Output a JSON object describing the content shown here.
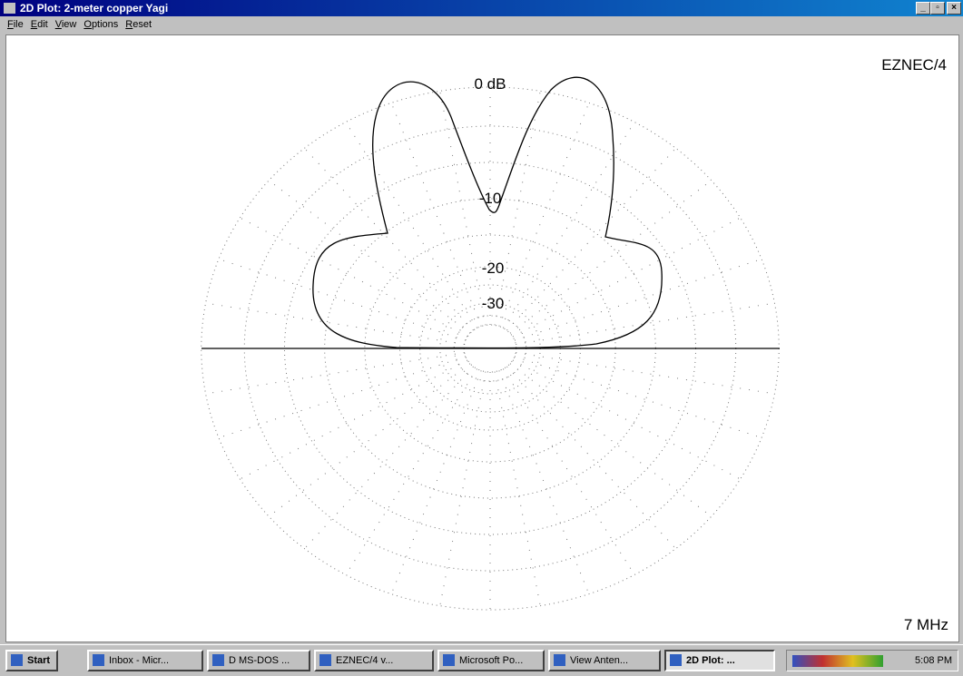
{
  "window": {
    "title": "2D Plot: 2-meter copper Yagi",
    "menu": [
      "File",
      "Edit",
      "View",
      "Options",
      "Reset"
    ]
  },
  "plot": {
    "program": "EZNEC/4",
    "frequency": "7 MHz",
    "ring_labels": [
      "0 dB",
      "-10",
      "-20",
      "-30"
    ]
  },
  "taskbar": {
    "start": "Start",
    "buttons": [
      "Inbox - Micr...",
      "D MS-DOS ...",
      "EZNEC/4  v...",
      "Microsoft Po...",
      "View Anten...",
      "2D Plot: ..."
    ],
    "clock": "5:08 PM"
  }
}
